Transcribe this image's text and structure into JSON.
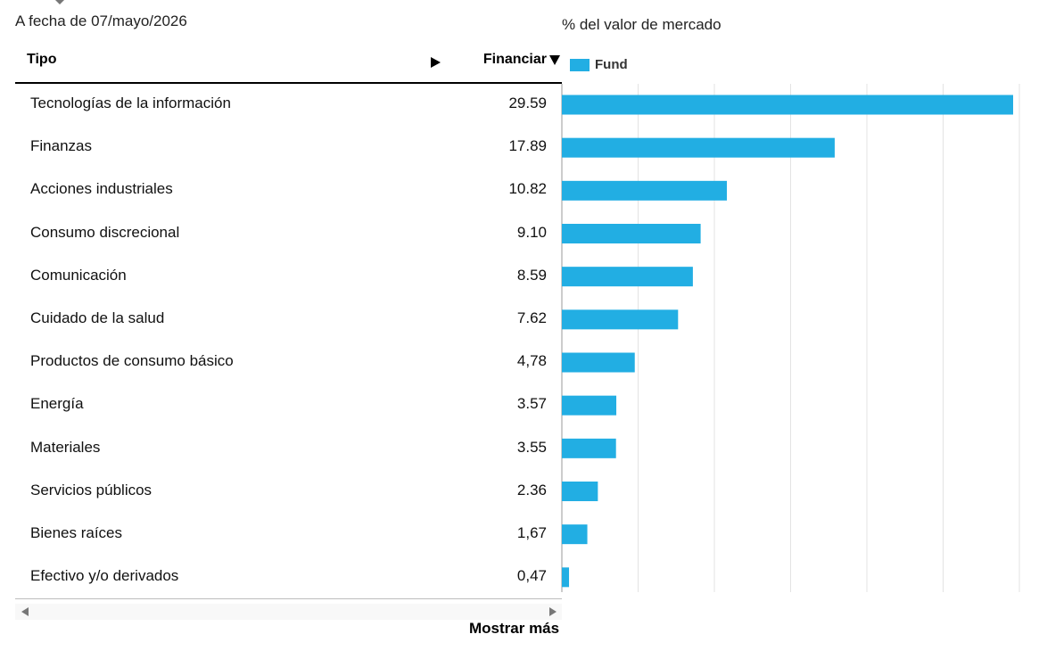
{
  "header": {
    "as_of": "A fecha de 07/mayo/2026",
    "chart_label": "% del valor de mercado"
  },
  "table": {
    "col_type": "Tipo",
    "col_value": "Financiar",
    "rows": [
      {
        "label": "Tecnologías de la información",
        "value": "29.59"
      },
      {
        "label": "Finanzas",
        "value": "17.89"
      },
      {
        "label": "Acciones industriales",
        "value": "10.82"
      },
      {
        "label": "Consumo discrecional",
        "value": "9.10"
      },
      {
        "label": "Comunicación",
        "value": "8.59"
      },
      {
        "label": "Cuidado de la salud",
        "value": "7.62"
      },
      {
        "label": "Productos de consumo básico",
        "value": "4,78"
      },
      {
        "label": "Energía",
        "value": "3.57"
      },
      {
        "label": "Materiales",
        "value": "3.55"
      },
      {
        "label": "Servicios públicos",
        "value": "2.36"
      },
      {
        "label": "Bienes raíces",
        "value": "1,67"
      },
      {
        "label": "Efectivo y/o derivados",
        "value": "0,47"
      }
    ]
  },
  "footer": {
    "show_more": "Mostrar más"
  },
  "icons": {
    "expand": "play-right-icon",
    "sort": "sort-down-icon",
    "scroll_left": "scroll-left-icon",
    "scroll_right": "scroll-right-icon"
  },
  "chart_data": {
    "type": "bar",
    "orientation": "horizontal",
    "categories": [
      "Tecnologías de la información",
      "Finanzas",
      "Acciones industriales",
      "Consumo discrecional",
      "Comunicación",
      "Cuidado de la salud",
      "Productos de consumo básico",
      "Energía",
      "Materiales",
      "Servicios públicos",
      "Bienes raíces",
      "Efectivo y/o derivados"
    ],
    "series": [
      {
        "name": "Fund",
        "values": [
          29.59,
          17.89,
          10.82,
          9.1,
          8.59,
          7.62,
          4.78,
          3.57,
          3.55,
          2.36,
          1.67,
          0.47
        ],
        "color": "#22aee3"
      }
    ],
    "title": "% del valor de mercado",
    "xlim": [
      0,
      30
    ],
    "grid": true,
    "legend_position": "top-left",
    "gridline_color": "#e3e3e3"
  }
}
